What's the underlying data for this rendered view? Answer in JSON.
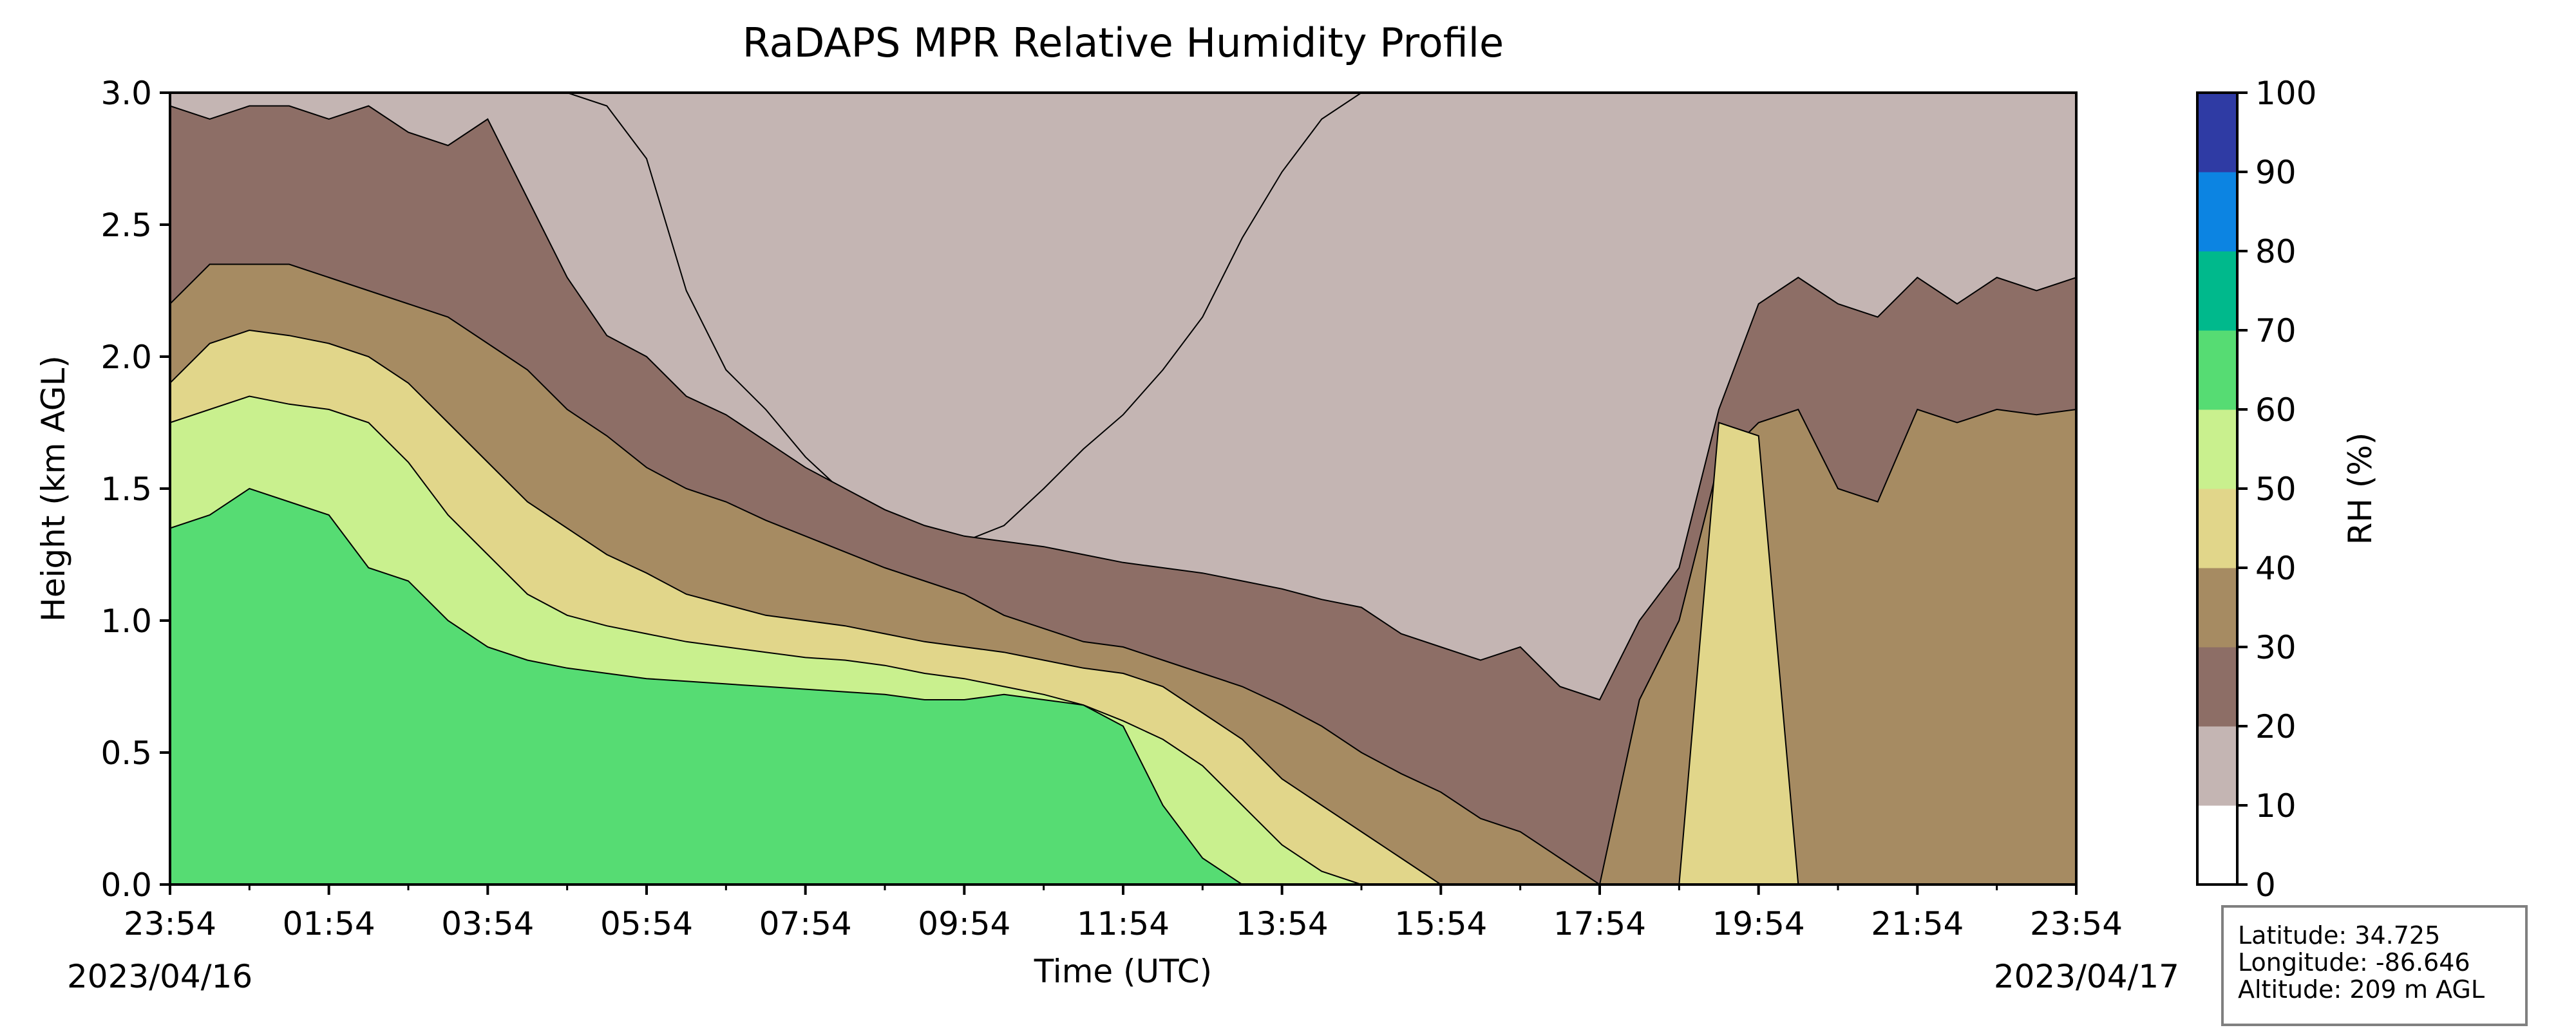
{
  "chart_data": {
    "type": "contourf",
    "title": "RaDAPS MPR Relative Humidity Profile",
    "xlabel": "Time (UTC)",
    "ylabel": "Height (km AGL)",
    "x_tick_labels": [
      "23:54",
      "01:54",
      "03:54",
      "05:54",
      "07:54",
      "09:54",
      "11:54",
      "13:54",
      "15:54",
      "17:54",
      "19:54",
      "21:54",
      "23:54"
    ],
    "x_range_hours": [
      0,
      24
    ],
    "y_ticks": [
      "0.0",
      "0.5",
      "1.0",
      "1.5",
      "2.0",
      "2.5",
      "3.0"
    ],
    "ylim": [
      0.0,
      3.0
    ],
    "start_date": "2023/04/16",
    "end_date": "2023/04/17",
    "colorbar": {
      "label": "RH (%)",
      "tick_labels": [
        "0",
        "10",
        "20",
        "30",
        "40",
        "50",
        "60",
        "70",
        "80",
        "90",
        "100"
      ],
      "levels": [
        0,
        10,
        20,
        30,
        40,
        50,
        60,
        70,
        80,
        90,
        100
      ],
      "colors": [
        "#ffffff",
        "#c4b5b3",
        "#8d6e66",
        "#a68b62",
        "#e1d68a",
        "#c9f08e",
        "#56dc73",
        "#00b98c",
        "#0c84e2",
        "#2f3ba4"
      ]
    },
    "contour_bands": [
      {
        "level": 10,
        "top_km": [
          3.0,
          3.0,
          3.0,
          3.0,
          3.0,
          3.0,
          3.0,
          3.0,
          3.0,
          3.0,
          3.0,
          2.95,
          2.75,
          2.25,
          1.95,
          1.8,
          1.62,
          1.48,
          1.38,
          1.32,
          1.3,
          1.36,
          1.5,
          1.65,
          1.78,
          1.95,
          2.15,
          2.45,
          2.7,
          2.9,
          3.0,
          3.0,
          3.0,
          3.0,
          3.0,
          3.0,
          3.0,
          3.0,
          3.0,
          3.0,
          3.0,
          3.0,
          3.0,
          3.0,
          3.0,
          3.0,
          3.0,
          3.0,
          3.0
        ]
      },
      {
        "level": 20,
        "top_km": [
          2.95,
          2.9,
          2.95,
          2.95,
          2.9,
          2.95,
          2.85,
          2.8,
          2.9,
          2.6,
          2.3,
          2.08,
          2.0,
          1.85,
          1.78,
          1.68,
          1.58,
          1.5,
          1.42,
          1.36,
          1.32,
          1.3,
          1.28,
          1.25,
          1.22,
          1.2,
          1.18,
          1.15,
          1.12,
          1.08,
          1.05,
          0.95,
          0.9,
          0.85,
          0.9,
          0.75,
          0.7,
          1.0,
          1.2,
          1.8,
          2.2,
          2.3,
          2.2,
          2.15,
          2.3,
          2.2,
          2.3,
          2.25,
          2.3
        ]
      },
      {
        "level": 30,
        "top_km": [
          2.2,
          2.35,
          2.35,
          2.35,
          2.3,
          2.25,
          2.2,
          2.15,
          2.05,
          1.95,
          1.8,
          1.7,
          1.58,
          1.5,
          1.45,
          1.38,
          1.32,
          1.26,
          1.2,
          1.15,
          1.1,
          1.02,
          0.97,
          0.92,
          0.9,
          0.85,
          0.8,
          0.75,
          0.68,
          0.6,
          0.5,
          0.42,
          0.35,
          0.25,
          0.2,
          0.1,
          0.0,
          0.7,
          1.0,
          1.6,
          1.75,
          1.8,
          1.5,
          1.45,
          1.8,
          1.75,
          1.8,
          1.78,
          1.8
        ]
      },
      {
        "level": 40,
        "top_km": [
          1.9,
          2.05,
          2.1,
          2.08,
          2.05,
          2.0,
          1.9,
          1.75,
          1.6,
          1.45,
          1.35,
          1.25,
          1.18,
          1.1,
          1.06,
          1.02,
          1.0,
          0.98,
          0.95,
          0.92,
          0.9,
          0.88,
          0.85,
          0.82,
          0.8,
          0.75,
          0.65,
          0.55,
          0.4,
          0.3,
          0.2,
          0.1,
          0.0,
          0.0,
          0.0,
          0.0,
          0.0,
          0.0,
          0.0,
          1.75,
          1.7,
          0.0,
          0.0,
          0.0,
          0.0,
          0.0,
          0.0,
          0.0,
          0.0
        ]
      },
      {
        "level": 50,
        "top_km": [
          1.75,
          1.8,
          1.85,
          1.82,
          1.8,
          1.75,
          1.6,
          1.4,
          1.25,
          1.1,
          1.02,
          0.98,
          0.95,
          0.92,
          0.9,
          0.88,
          0.86,
          0.85,
          0.83,
          0.8,
          0.78,
          0.75,
          0.72,
          0.68,
          0.62,
          0.55,
          0.45,
          0.3,
          0.15,
          0.05,
          0.0,
          0.0,
          0.0,
          0.0,
          0.0,
          0.0,
          0.0,
          0.0,
          0.0,
          0.0,
          0.0,
          0.0,
          0.0,
          0.0,
          0.0,
          0.0,
          0.0,
          0.0,
          0.0
        ]
      },
      {
        "level": 60,
        "top_km": [
          1.35,
          1.4,
          1.5,
          1.45,
          1.4,
          1.2,
          1.15,
          1.0,
          0.9,
          0.85,
          0.82,
          0.8,
          0.78,
          0.77,
          0.76,
          0.75,
          0.74,
          0.73,
          0.72,
          0.7,
          0.7,
          0.72,
          0.7,
          0.68,
          0.6,
          0.3,
          0.1,
          0.0,
          0.0,
          0.0,
          0.0,
          0.0,
          0.0,
          0.0,
          0.0,
          0.0,
          0.0,
          0.0,
          0.0,
          0.0,
          0.0,
          0.0,
          0.0,
          0.0,
          0.0,
          0.0,
          0.0,
          0.0,
          0.0
        ]
      }
    ],
    "info_box": {
      "latitude": "Latitude: 34.725",
      "longitude": "Longitude: -86.646",
      "altitude": "Altitude: 209 m AGL"
    }
  }
}
